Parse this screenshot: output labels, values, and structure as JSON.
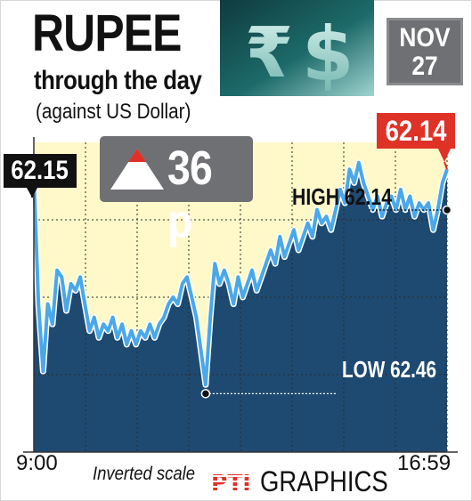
{
  "header": {
    "title": "RUPEE",
    "subtitle": "through the day",
    "note": "(against US Dollar)",
    "date_line1": "NOV",
    "date_line2": "27"
  },
  "change": {
    "direction": "up",
    "value": "36 p",
    "arrow_color": "#e03127"
  },
  "footer": {
    "scale_note": "Inverted scale",
    "agency": "PTI",
    "agency_suffix": "GRAPHICS"
  },
  "colors": {
    "line": "#4aa8e8",
    "area_below": "#1e4a72",
    "area_above": "#fff9c9",
    "callout_open": "#111111",
    "callout_close": "#e03127",
    "badge": "#6f7073"
  },
  "chart_data": {
    "type": "area",
    "inverted_y": true,
    "x_start_label": "9:00",
    "x_end_label": "16:59",
    "open_label": "62.15",
    "close_label": "62.14",
    "high_label": "HIGH 62.14",
    "low_label": "LOW 62.46",
    "grid": true,
    "ylim": [
      62.56,
      62.1
    ],
    "series": [
      {
        "values": [
          62.15,
          62.34,
          62.44,
          62.34,
          62.37,
          62.29,
          62.3,
          62.35,
          62.31,
          62.32,
          62.3,
          62.34,
          62.38,
          62.36,
          62.39,
          62.37,
          62.38,
          62.36,
          62.39,
          62.37,
          62.4,
          62.38,
          62.4,
          62.38,
          62.39,
          62.37,
          62.39,
          62.37,
          62.36,
          62.34,
          62.33,
          62.34,
          62.31,
          62.3,
          62.33,
          62.36,
          62.41,
          62.46,
          62.36,
          62.28,
          62.31,
          62.29,
          62.31,
          62.34,
          62.3,
          62.33,
          62.31,
          62.29,
          62.32,
          62.3,
          62.28,
          62.26,
          62.28,
          62.24,
          62.27,
          62.25,
          62.23,
          62.26,
          62.24,
          62.22,
          62.24,
          62.2,
          62.22,
          62.21,
          62.23,
          62.2,
          62.17,
          62.19,
          62.14,
          62.16,
          62.13,
          62.16,
          62.18,
          62.2,
          62.18,
          62.21,
          62.19,
          62.18,
          62.2,
          62.17,
          62.2,
          62.18,
          62.21,
          62.19,
          62.2,
          62.19,
          62.23,
          62.2,
          62.16,
          62.14
        ]
      }
    ]
  }
}
